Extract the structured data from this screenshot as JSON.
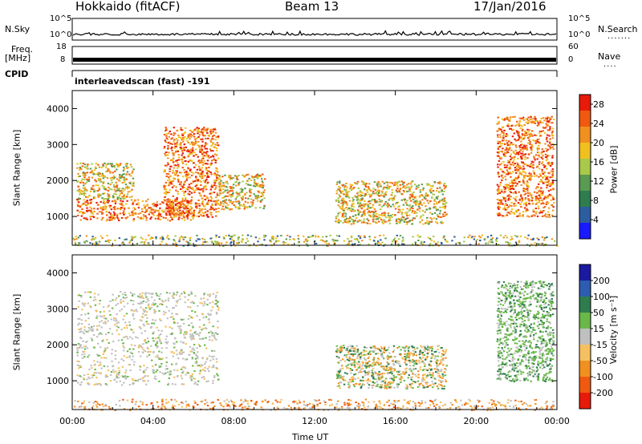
{
  "header": {
    "station": "Hokkaido (fitACF)",
    "beam": "Beam 13",
    "date": "17/Jan/2016"
  },
  "left_labels": {
    "nsky": "N.Sky",
    "freq": "Freq.",
    "freq_unit": "[MHz]",
    "cpid": "CPID"
  },
  "right_labels": {
    "nsearch": "N.Search",
    "nave": "Nave"
  },
  "cpid_text": "interleavedscan (fast) -191",
  "ticks": {
    "nsky_top": "10^5",
    "nsky_bottom": "10^0",
    "freq_top": "18",
    "freq_bottom": "8",
    "nave_top": "60",
    "nave_bottom": "0"
  },
  "chart_data": [
    {
      "type": "heatmap",
      "name": "power_panel",
      "ylabel": "Slant Range [km]",
      "ylim": [
        200,
        4500
      ],
      "yticks": [
        "1000",
        "2000",
        "3000",
        "4000"
      ],
      "xlabel": "Time UT",
      "xticks": [
        "00:00",
        "04:00",
        "08:00",
        "12:00",
        "16:00",
        "20:00",
        "00:00"
      ],
      "xlim": [
        0,
        24
      ],
      "colorbar": {
        "label": "Power [dB]",
        "ticks": [
          "4",
          "8",
          "12",
          "16",
          "20",
          "24",
          "28"
        ],
        "range": [
          0,
          30
        ],
        "colors": [
          "#1a1aff",
          "#2d5da0",
          "#2f7d4f",
          "#5a9a52",
          "#a9c94a",
          "#f0c020",
          "#f09020",
          "#f05a10",
          "#e81a0a"
        ]
      },
      "regions": [
        {
          "t": [
            0.2,
            6.0
          ],
          "r": [
            900,
            1500
          ],
          "level": "high"
        },
        {
          "t": [
            0.2,
            3.0
          ],
          "r": [
            1500,
            2500
          ],
          "level": "mid"
        },
        {
          "t": [
            4.5,
            7.2
          ],
          "r": [
            1000,
            3500
          ],
          "level": "high"
        },
        {
          "t": [
            7.2,
            9.5
          ],
          "r": [
            1200,
            2200
          ],
          "level": "mid"
        },
        {
          "t": [
            13.0,
            18.5
          ],
          "r": [
            800,
            2000
          ],
          "level": "mid"
        },
        {
          "t": [
            21.0,
            23.8
          ],
          "r": [
            1000,
            3800
          ],
          "level": "high"
        },
        {
          "t": [
            0.0,
            24.0
          ],
          "r": [
            200,
            500
          ],
          "level": "low"
        }
      ]
    },
    {
      "type": "heatmap",
      "name": "velocity_panel",
      "ylabel": "Slant Range [km]",
      "ylim": [
        200,
        4500
      ],
      "yticks": [
        "1000",
        "2000",
        "3000",
        "4000"
      ],
      "xlabel": "Time UT",
      "xticks": [
        "00:00",
        "04:00",
        "08:00",
        "12:00",
        "16:00",
        "20:00",
        "00:00"
      ],
      "xlim": [
        0,
        24
      ],
      "colorbar": {
        "label": "Velocity [m s⁻¹]",
        "ticks": [
          "200",
          "100",
          "50",
          "15",
          "-15",
          "-50",
          "-100",
          "-200"
        ],
        "range": [
          -250,
          250
        ],
        "colors": [
          "#1a1aa0",
          "#2d5db0",
          "#2f7d4f",
          "#6ab84a",
          "#c0c0c0",
          "#f5c060",
          "#f09020",
          "#f05a10",
          "#e81a0a"
        ]
      },
      "regions": [
        {
          "t": [
            0.2,
            7.2
          ],
          "r": [
            900,
            3500
          ],
          "level": "grey"
        },
        {
          "t": [
            13.0,
            18.5
          ],
          "r": [
            800,
            2000
          ],
          "level": "mixed"
        },
        {
          "t": [
            21.0,
            23.8
          ],
          "r": [
            1000,
            3800
          ],
          "level": "green"
        },
        {
          "t": [
            0.0,
            24.0
          ],
          "r": [
            200,
            500
          ],
          "level": "orange"
        }
      ]
    }
  ]
}
